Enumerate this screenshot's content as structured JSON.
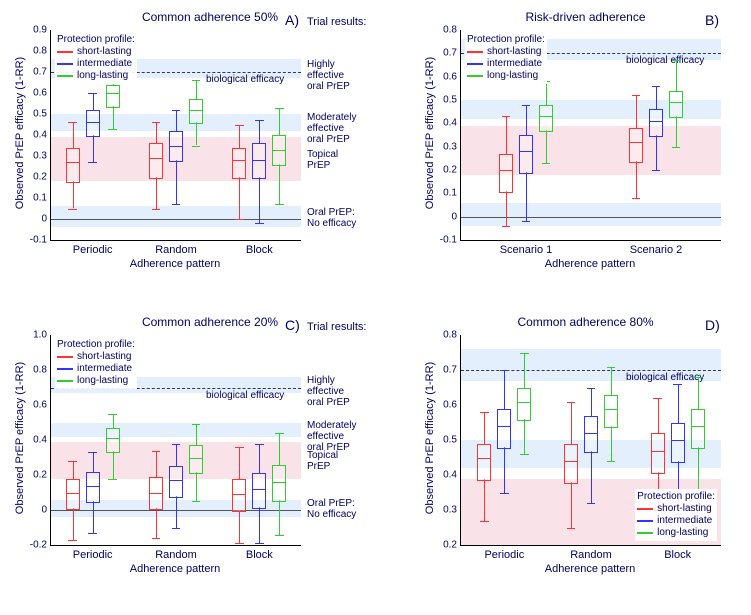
{
  "colors": {
    "short": "#ff3333",
    "intermediate": "#3333ff",
    "long": "#33cc33",
    "blue_band": "#e3effc",
    "pink_band": "#fae3e8",
    "axis_text": "#000066"
  },
  "legend": {
    "title": "Protection profile:",
    "items": [
      {
        "label": "short-lasting",
        "color": "#ff3333"
      },
      {
        "label": "intermediate",
        "color": "#3333ff"
      },
      {
        "label": "long-lasting",
        "color": "#33cc33"
      }
    ]
  },
  "ylabel": "Observed PrEP efficacy (1-RR)",
  "xlabel": "Adherence pattern",
  "bio_eff_label": "biological efficacy",
  "bio_eff_value": 0.7,
  "bands": [
    {
      "lo": 0.67,
      "hi": 0.76,
      "color": "#e3effc",
      "label": "Highly\neffective\noral PrEP"
    },
    {
      "lo": 0.42,
      "hi": 0.5,
      "color": "#e3effc",
      "label": "Moderately\neffective\noral PrEP"
    },
    {
      "lo": 0.18,
      "hi": 0.39,
      "color": "#fae3e8",
      "label": "Topical\nPrEP"
    },
    {
      "lo": -0.04,
      "hi": 0.06,
      "color": "#e3effc",
      "label": "Oral PrEP:\nNo efficacy"
    }
  ],
  "trial_results_label": "Trial results:",
  "panels": [
    {
      "id": "A",
      "title": "Common adherence 50%",
      "ylim": [
        -0.1,
        0.9
      ],
      "ytick_step": 0.1,
      "show_band_labels": true,
      "show_trial_results": true,
      "legend_pos": "top-left",
      "categories": [
        "Periodic",
        "Random",
        "Block"
      ],
      "data": [
        {
          "cat": 0,
          "series": 0,
          "lo": 0.05,
          "q1": 0.18,
          "med": 0.27,
          "q3": 0.34,
          "hi": 0.46
        },
        {
          "cat": 0,
          "series": 1,
          "lo": 0.27,
          "q1": 0.4,
          "med": 0.46,
          "q3": 0.52,
          "hi": 0.6
        },
        {
          "cat": 0,
          "series": 2,
          "lo": 0.43,
          "q1": 0.54,
          "med": 0.6,
          "q3": 0.64,
          "hi": 0.71
        },
        {
          "cat": 1,
          "series": 0,
          "lo": 0.05,
          "q1": 0.2,
          "med": 0.29,
          "q3": 0.36,
          "hi": 0.46
        },
        {
          "cat": 1,
          "series": 1,
          "lo": 0.07,
          "q1": 0.28,
          "med": 0.35,
          "q3": 0.42,
          "hi": 0.52
        },
        {
          "cat": 1,
          "series": 2,
          "lo": 0.35,
          "q1": 0.46,
          "med": 0.52,
          "q3": 0.57,
          "hi": 0.66
        },
        {
          "cat": 2,
          "series": 0,
          "lo": 0.0,
          "q1": 0.2,
          "med": 0.28,
          "q3": 0.34,
          "hi": 0.45
        },
        {
          "cat": 2,
          "series": 1,
          "lo": -0.02,
          "q1": 0.2,
          "med": 0.28,
          "q3": 0.36,
          "hi": 0.47
        },
        {
          "cat": 2,
          "series": 2,
          "lo": 0.07,
          "q1": 0.26,
          "med": 0.33,
          "q3": 0.4,
          "hi": 0.53
        }
      ]
    },
    {
      "id": "B",
      "title": "Risk-driven adherence",
      "ylim": [
        -0.1,
        0.8
      ],
      "ytick_step": 0.1,
      "show_band_labels": false,
      "show_trial_results": false,
      "legend_pos": "top-left",
      "categories": [
        "Scenario 1",
        "Scenario 2"
      ],
      "data": [
        {
          "cat": 0,
          "series": 0,
          "lo": -0.04,
          "q1": 0.11,
          "med": 0.2,
          "q3": 0.27,
          "hi": 0.43
        },
        {
          "cat": 0,
          "series": 1,
          "lo": -0.02,
          "q1": 0.19,
          "med": 0.28,
          "q3": 0.35,
          "hi": 0.48
        },
        {
          "cat": 0,
          "series": 2,
          "lo": 0.23,
          "q1": 0.37,
          "med": 0.43,
          "q3": 0.48,
          "hi": 0.58
        },
        {
          "cat": 1,
          "series": 0,
          "lo": 0.08,
          "q1": 0.24,
          "med": 0.32,
          "q3": 0.38,
          "hi": 0.52
        },
        {
          "cat": 1,
          "series": 1,
          "lo": 0.2,
          "q1": 0.35,
          "med": 0.41,
          "q3": 0.46,
          "hi": 0.56
        },
        {
          "cat": 1,
          "series": 2,
          "lo": 0.3,
          "q1": 0.43,
          "med": 0.49,
          "q3": 0.54,
          "hi": 0.67
        }
      ]
    },
    {
      "id": "C",
      "title": "Common adherence 20%",
      "ylim": [
        -0.2,
        1.0
      ],
      "ytick_step": 0.2,
      "show_band_labels": true,
      "show_trial_results": true,
      "legend_pos": "top-left",
      "categories": [
        "Periodic",
        "Random",
        "Block"
      ],
      "data": [
        {
          "cat": 0,
          "series": 0,
          "lo": -0.17,
          "q1": 0.01,
          "med": 0.1,
          "q3": 0.18,
          "hi": 0.28
        },
        {
          "cat": 0,
          "series": 1,
          "lo": -0.13,
          "q1": 0.05,
          "med": 0.14,
          "q3": 0.22,
          "hi": 0.33
        },
        {
          "cat": 0,
          "series": 2,
          "lo": 0.18,
          "q1": 0.34,
          "med": 0.41,
          "q3": 0.47,
          "hi": 0.55
        },
        {
          "cat": 1,
          "series": 0,
          "lo": -0.16,
          "q1": 0.01,
          "med": 0.1,
          "q3": 0.19,
          "hi": 0.34
        },
        {
          "cat": 1,
          "series": 1,
          "lo": -0.1,
          "q1": 0.08,
          "med": 0.17,
          "q3": 0.25,
          "hi": 0.38
        },
        {
          "cat": 1,
          "series": 2,
          "lo": 0.05,
          "q1": 0.22,
          "med": 0.3,
          "q3": 0.37,
          "hi": 0.49
        },
        {
          "cat": 2,
          "series": 0,
          "lo": -0.19,
          "q1": 0.0,
          "med": 0.09,
          "q3": 0.18,
          "hi": 0.36
        },
        {
          "cat": 2,
          "series": 1,
          "lo": -0.19,
          "q1": 0.02,
          "med": 0.12,
          "q3": 0.21,
          "hi": 0.38
        },
        {
          "cat": 2,
          "series": 2,
          "lo": -0.14,
          "q1": 0.06,
          "med": 0.16,
          "q3": 0.26,
          "hi": 0.44
        }
      ]
    },
    {
      "id": "D",
      "title": "Common adherence 80%",
      "ylim": [
        0.2,
        0.8
      ],
      "ytick_step": 0.1,
      "show_band_labels": false,
      "show_trial_results": false,
      "legend_pos": "bottom-right",
      "categories": [
        "Periodic",
        "Random",
        "Block"
      ],
      "data": [
        {
          "cat": 0,
          "series": 0,
          "lo": 0.27,
          "q1": 0.39,
          "med": 0.45,
          "q3": 0.49,
          "hi": 0.58
        },
        {
          "cat": 0,
          "series": 1,
          "lo": 0.35,
          "q1": 0.48,
          "med": 0.54,
          "q3": 0.59,
          "hi": 0.7
        },
        {
          "cat": 0,
          "series": 2,
          "lo": 0.46,
          "q1": 0.56,
          "med": 0.61,
          "q3": 0.65,
          "hi": 0.75
        },
        {
          "cat": 1,
          "series": 0,
          "lo": 0.25,
          "q1": 0.38,
          "med": 0.44,
          "q3": 0.49,
          "hi": 0.61
        },
        {
          "cat": 1,
          "series": 1,
          "lo": 0.32,
          "q1": 0.47,
          "med": 0.52,
          "q3": 0.57,
          "hi": 0.65
        },
        {
          "cat": 1,
          "series": 2,
          "lo": 0.44,
          "q1": 0.54,
          "med": 0.59,
          "q3": 0.63,
          "hi": 0.71
        },
        {
          "cat": 2,
          "series": 0,
          "lo": 0.3,
          "q1": 0.41,
          "med": 0.47,
          "q3": 0.52,
          "hi": 0.62
        },
        {
          "cat": 2,
          "series": 1,
          "lo": 0.29,
          "q1": 0.44,
          "med": 0.5,
          "q3": 0.55,
          "hi": 0.66
        },
        {
          "cat": 2,
          "series": 2,
          "lo": 0.35,
          "q1": 0.48,
          "med": 0.54,
          "q3": 0.59,
          "hi": 0.68
        }
      ]
    }
  ]
}
